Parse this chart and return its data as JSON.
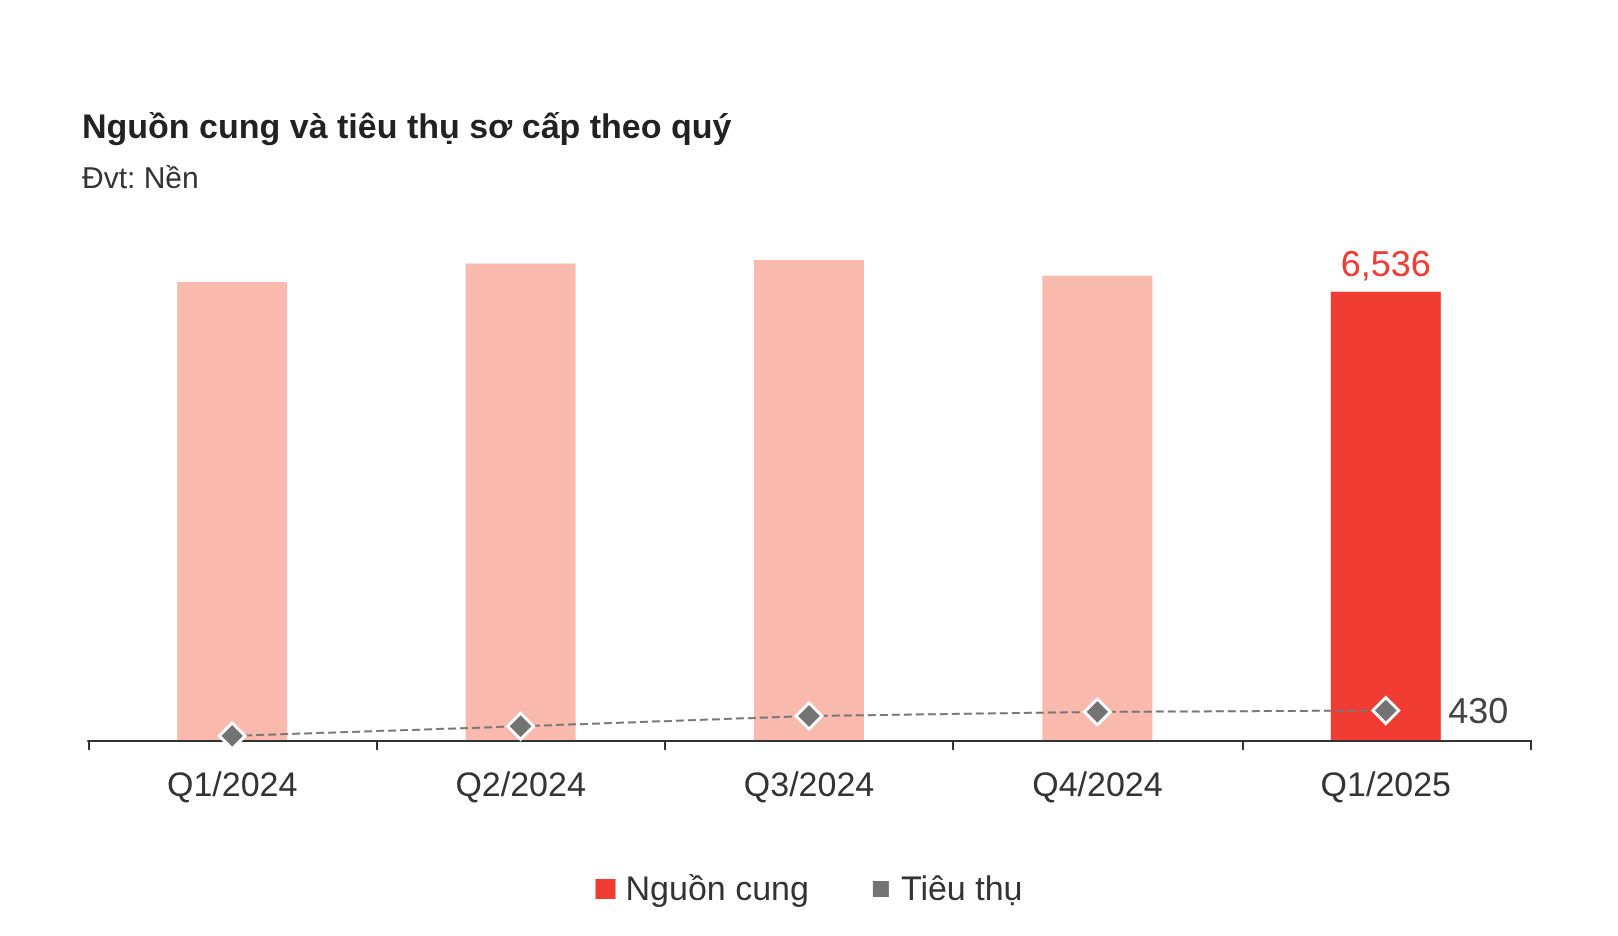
{
  "chart_data": {
    "type": "bar",
    "title": "Nguồn cung và tiêu thụ sơ cấp theo quý",
    "subtitle": "Đvt: Nền",
    "categories": [
      "Q1/2024",
      "Q2/2024",
      "Q3/2024",
      "Q4/2024",
      "Q1/2025"
    ],
    "series": [
      {
        "name": "Nguồn cung",
        "color": "#f03c32",
        "colors": [
          "#f9b9ad",
          "#f9b9ad",
          "#f9b9ad",
          "#f9b9ad",
          "#f03c32"
        ],
        "values": [
          6680,
          6950,
          7000,
          6770,
          6536
        ],
        "value_labels": [
          null,
          null,
          null,
          null,
          "6,536"
        ]
      },
      {
        "name": "Tiêu thụ",
        "type": "line",
        "color": "#737373",
        "values": [
          60,
          200,
          350,
          410,
          430
        ],
        "value_labels": [
          null,
          null,
          null,
          null,
          "430"
        ],
        "marker": "diamond",
        "line_style": "dashed"
      }
    ],
    "legend": "bottom",
    "grid": false
  }
}
